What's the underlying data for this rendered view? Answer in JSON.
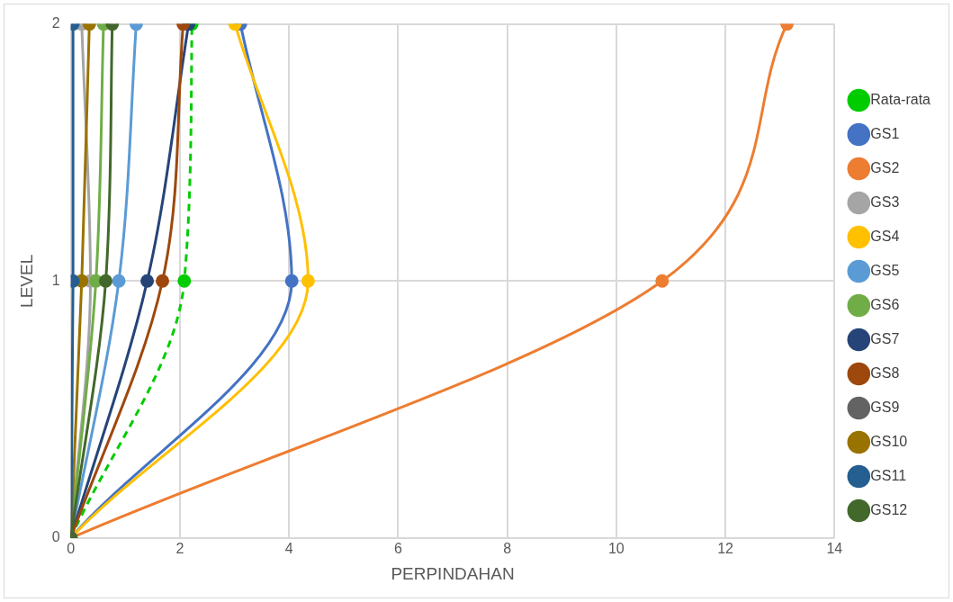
{
  "chart_data": {
    "type": "line",
    "xlabel": "PERPINDAHAN",
    "ylabel": "LEVEL",
    "xlim": [
      0,
      14
    ],
    "xticks": [
      0,
      2,
      4,
      6,
      8,
      10,
      12,
      14
    ],
    "ylim": [
      0,
      2
    ],
    "yticks": [
      0,
      1,
      2
    ],
    "grid": true,
    "legend": "right",
    "marker": "circle",
    "line_style": "solid",
    "series": [
      {
        "name": "Rata-rata",
        "color": "#00cc00",
        "line_style": "dashed",
        "x": [
          0,
          2.08,
          2.22
        ],
        "values": [
          0,
          1,
          2
        ]
      },
      {
        "name": "GS1",
        "color": "#4472c4",
        "x": [
          0,
          4.05,
          3.11
        ],
        "values": [
          0,
          1,
          2
        ]
      },
      {
        "name": "GS2",
        "color": "#ed7d31",
        "x": [
          0,
          10.84,
          13.13
        ],
        "values": [
          0,
          1,
          2
        ]
      },
      {
        "name": "GS3",
        "color": "#a5a5a5",
        "x": [
          0,
          0.36,
          0.2
        ],
        "values": [
          0,
          1,
          2
        ]
      },
      {
        "name": "GS4",
        "color": "#ffc000",
        "x": [
          0,
          4.35,
          3.01
        ],
        "values": [
          0,
          1,
          2
        ]
      },
      {
        "name": "GS5",
        "color": "#5b9bd5",
        "x": [
          0,
          0.88,
          1.2
        ],
        "values": [
          0,
          1,
          2
        ]
      },
      {
        "name": "GS6",
        "color": "#70ad47",
        "x": [
          0,
          0.46,
          0.6
        ],
        "values": [
          0,
          1,
          2
        ]
      },
      {
        "name": "GS7",
        "color": "#264478",
        "x": [
          0,
          1.4,
          2.16
        ],
        "values": [
          0,
          1,
          2
        ]
      },
      {
        "name": "GS8",
        "color": "#9e480e",
        "x": [
          0,
          1.68,
          2.06
        ],
        "values": [
          0,
          1,
          2
        ]
      },
      {
        "name": "GS9",
        "color": "#636363",
        "x": [
          null,
          null,
          null
        ],
        "values": [
          null,
          null,
          null
        ]
      },
      {
        "name": "GS10",
        "color": "#997300",
        "x": [
          0,
          0.2,
          0.34
        ],
        "values": [
          0,
          1,
          2
        ]
      },
      {
        "name": "GS11",
        "color": "#255e91",
        "x": [
          0,
          0.04,
          0.04
        ],
        "values": [
          0,
          1,
          2
        ]
      },
      {
        "name": "GS12",
        "color": "#43682b",
        "x": [
          0,
          0.64,
          0.76
        ],
        "values": [
          0,
          1,
          2
        ]
      }
    ]
  }
}
